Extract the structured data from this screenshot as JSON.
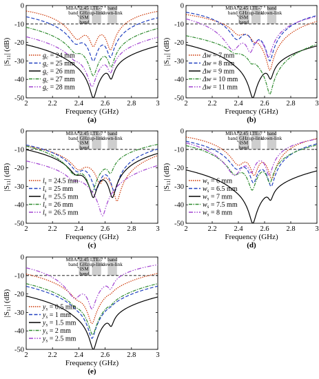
{
  "chart_data": [
    {
      "panel_label": "(a)",
      "type": "line",
      "xlabel": "Frequency (GHz)",
      "ylabel": "|S11| (dB)",
      "xlim": [
        2,
        3
      ],
      "ylim": [
        -50,
        0
      ],
      "xticks": [
        2,
        2.2,
        2.4,
        2.6,
        2.8,
        3
      ],
      "yticks": [
        0,
        -10,
        -20,
        -30,
        -40,
        -50
      ],
      "reference_line_db": -10,
      "band_labels": [
        "MBAN band",
        "2.45 GHz ISM band",
        "LTE-7 up-link",
        "band down-link"
      ],
      "legend_position": "left-bottom",
      "series": [
        {
          "name": "gc = 24 mm",
          "prefix": "g",
          "sub": "c",
          "suffix": " = 24 mm",
          "color": "#cc3300",
          "dash": "1.5,1.5",
          "dips": [
            [
              2.39,
              -18,
              0.042
            ],
            [
              2.51,
              -22,
              0.021
            ],
            [
              2.64,
              -24,
              0.019
            ]
          ]
        },
        {
          "name": "gc = 25 mm",
          "prefix": "g",
          "sub": "c",
          "suffix": " = 25 mm",
          "color": "#1f3fbf",
          "dash": "5,2.5",
          "dips": [
            [
              2.38,
              -20,
              0.042
            ],
            [
              2.51,
              -30,
              0.02
            ],
            [
              2.64,
              -28,
              0.019
            ]
          ]
        },
        {
          "name": "gc = 26 mm",
          "prefix": "g",
          "sub": "c",
          "suffix": " = 26 mm",
          "color": "#000000",
          "dash": "",
          "dips": [
            [
              2.38,
              -22,
              0.042
            ],
            [
              2.51,
              -50,
              0.018
            ],
            [
              2.645,
              -39,
              0.017
            ]
          ]
        },
        {
          "name": "gc = 27 mm",
          "prefix": "g",
          "sub": "c",
          "suffix": " = 27 mm",
          "color": "#2e8b2e",
          "dash": "5,1.5,1.5,1.5",
          "dips": [
            [
              2.375,
              -24,
              0.042
            ],
            [
              2.51,
              -38,
              0.02
            ],
            [
              2.645,
              -33,
              0.018
            ]
          ]
        },
        {
          "name": "gc = 28 mm",
          "prefix": "g",
          "sub": "c",
          "suffix": " = 28 mm",
          "color": "#a040d0",
          "dash": "6,2,1.5,2,1.5,2",
          "dips": [
            [
              2.37,
              -26,
              0.042
            ],
            [
              2.5,
              -44,
              0.02
            ],
            [
              2.64,
              -36,
              0.018
            ]
          ]
        }
      ]
    },
    {
      "panel_label": "(b)",
      "type": "line",
      "xlabel": "Frequency (GHz)",
      "ylabel": "|S11| (dB)",
      "xlim": [
        2,
        3
      ],
      "ylim": [
        -50,
        0
      ],
      "xticks": [
        2,
        2.2,
        2.4,
        2.6,
        2.8,
        3
      ],
      "yticks": [
        0,
        -10,
        -20,
        -30,
        -40,
        -50
      ],
      "reference_line_db": -10,
      "band_labels": [
        "MBAN band",
        "2.45 GHz ISM band",
        "LTE-7 up-link",
        "band down-link"
      ],
      "legend_position": "left-bottom",
      "series": [
        {
          "name": "Δw = 7 mm",
          "prefix": "Δw",
          "sub": "",
          "suffix": " = 7 mm",
          "color": "#cc3300",
          "dash": "1.5,1.5",
          "dips": [
            [
              2.4,
              -14,
              0.04
            ],
            [
              2.52,
              -16,
              0.022
            ],
            [
              2.64,
              -35,
              0.016
            ]
          ]
        },
        {
          "name": "Δw = 8 mm",
          "prefix": "Δw",
          "sub": "",
          "suffix": " = 8 mm",
          "color": "#1f3fbf",
          "dash": "5,2.5",
          "dips": [
            [
              2.39,
              -18,
              0.04
            ],
            [
              2.52,
              -20,
              0.022
            ],
            [
              2.64,
              -30,
              0.017
            ]
          ]
        },
        {
          "name": "Δw = 9 mm",
          "prefix": "Δw",
          "sub": "",
          "suffix": " = 9 mm",
          "color": "#000000",
          "dash": "",
          "dips": [
            [
              2.38,
              -22,
              0.042
            ],
            [
              2.51,
              -50,
              0.018
            ],
            [
              2.645,
              -39,
              0.017
            ]
          ]
        },
        {
          "name": "Δw = 10 mm",
          "prefix": "Δw",
          "sub": "",
          "suffix": " = 10 mm",
          "color": "#2e8b2e",
          "dash": "5,1.5,1.5,1.5",
          "dips": [
            [
              2.37,
              -22,
              0.042
            ],
            [
              2.5,
              -28,
              0.02
            ],
            [
              2.64,
              -48,
              0.016
            ]
          ]
        },
        {
          "name": "Δw = 11 mm",
          "prefix": "Δw",
          "sub": "",
          "suffix": " = 11 mm",
          "color": "#a040d0",
          "dash": "6,2,1.5,2,1.5,2",
          "dips": [
            [
              2.36,
              -24,
              0.042
            ],
            [
              2.49,
              -25,
              0.022
            ],
            [
              2.63,
              -28,
              0.018
            ]
          ]
        }
      ]
    },
    {
      "panel_label": "(c)",
      "type": "line",
      "xlabel": "Frequency (GHz)",
      "ylabel": "|S11| (dB)",
      "xlim": [
        2,
        3
      ],
      "ylim": [
        -50,
        0
      ],
      "xticks": [
        2,
        2.2,
        2.4,
        2.6,
        2.8,
        3
      ],
      "yticks": [
        0,
        -10,
        -20,
        -30,
        -40,
        -50
      ],
      "reference_line_db": -10,
      "band_labels": [
        "MBAN band",
        "2.45 GHz ISM band",
        "LTE-7 up-link",
        "band down-link"
      ],
      "legend_position": "left-bottom",
      "series": [
        {
          "name": "ls = 24.5 mm",
          "prefix": "l",
          "sub": "s",
          "suffix": " = 24.5 mm",
          "color": "#cc3300",
          "dash": "1.5,1.5",
          "dips": [
            [
              2.4,
              -20,
              0.042
            ],
            [
              2.56,
              -28,
              0.02
            ],
            [
              2.69,
              -38,
              0.017
            ]
          ]
        },
        {
          "name": "ls = 25 mm",
          "prefix": "l",
          "sub": "s",
          "suffix": " = 25 mm",
          "color": "#1f3fbf",
          "dash": "5,2.5",
          "dips": [
            [
              2.39,
              -21,
              0.042
            ],
            [
              2.53,
              -32,
              0.02
            ],
            [
              2.67,
              -33,
              0.017
            ]
          ]
        },
        {
          "name": "ls = 25.5 mm",
          "prefix": "l",
          "sub": "s",
          "suffix": " = 25.5 mm",
          "color": "#000000",
          "dash": "",
          "dips": [
            [
              2.38,
              -22,
              0.042
            ],
            [
              2.51,
              -36,
              0.018
            ],
            [
              2.655,
              -36,
              0.017
            ]
          ]
        },
        {
          "name": "ls = 26 mm",
          "prefix": "l",
          "sub": "s",
          "suffix": " = 26 mm",
          "color": "#2e8b2e",
          "dash": "5,1.5,1.5,1.5",
          "dips": [
            [
              2.37,
              -23,
              0.042
            ],
            [
              2.5,
              -33,
              0.02
            ],
            [
              2.64,
              -22,
              0.02
            ]
          ]
        },
        {
          "name": "ls = 26.5 mm",
          "prefix": "l",
          "sub": "s",
          "suffix": " = 26.5 mm",
          "color": "#a040d0",
          "dash": "6,2,1.5,2,1.5,2",
          "dips": [
            [
              2.36,
              -24,
              0.042
            ],
            [
              2.58,
              -46,
              0.018
            ],
            [
              2.63,
              -18,
              0.02
            ]
          ]
        }
      ]
    },
    {
      "panel_label": "(d)",
      "type": "line",
      "xlabel": "Frequency (GHz)",
      "ylabel": "|S11| (dB)",
      "xlim": [
        2,
        3
      ],
      "ylim": [
        -50,
        0
      ],
      "xticks": [
        2,
        2.2,
        2.4,
        2.6,
        2.8,
        3
      ],
      "yticks": [
        0,
        -10,
        -20,
        -30,
        -40,
        -50
      ],
      "reference_line_db": -10,
      "band_labels": [
        "MBAN band",
        "2.45 GHz ISM band",
        "LTE-7 up-link",
        "band down-link"
      ],
      "legend_position": "left-bottom",
      "series": [
        {
          "name": "ws = 6 mm",
          "prefix": "w",
          "sub": "s",
          "suffix": " = 6 mm",
          "color": "#cc3300",
          "dash": "1.5,1.5",
          "dips": [
            [
              2.4,
              -18,
              0.042
            ],
            [
              2.52,
              -24,
              0.02
            ],
            [
              2.655,
              -26,
              0.018
            ]
          ]
        },
        {
          "name": "ws = 6.5 mm",
          "prefix": "w",
          "sub": "s",
          "suffix": " = 6.5 mm",
          "color": "#1f3fbf",
          "dash": "5,2.5",
          "dips": [
            [
              2.39,
              -20,
              0.042
            ],
            [
              2.515,
              -28,
              0.02
            ],
            [
              2.65,
              -30,
              0.018
            ]
          ]
        },
        {
          "name": "ws = 7 mm",
          "prefix": "w",
          "sub": "s",
          "suffix": " = 7 mm",
          "color": "#000000",
          "dash": "",
          "dips": [
            [
              2.38,
              -22,
              0.042
            ],
            [
              2.51,
              -50,
              0.018
            ],
            [
              2.645,
              -36,
              0.017
            ]
          ]
        },
        {
          "name": "ws = 7.5 mm",
          "prefix": "w",
          "sub": "s",
          "suffix": " = 7.5 mm",
          "color": "#2e8b2e",
          "dash": "5,1.5,1.5,1.5",
          "dips": [
            [
              2.375,
              -23,
              0.042
            ],
            [
              2.505,
              -32,
              0.02
            ],
            [
              2.64,
              -28,
              0.018
            ]
          ]
        },
        {
          "name": "ws = 8 mm",
          "prefix": "w",
          "sub": "s",
          "suffix": " = 8 mm",
          "color": "#a040d0",
          "dash": "6,2,1.5,2,1.5,2",
          "dips": [
            [
              2.37,
              -24,
              0.042
            ],
            [
              2.5,
              -22,
              0.02
            ],
            [
              2.635,
              -24,
              0.018
            ]
          ]
        }
      ]
    },
    {
      "panel_label": "(e)",
      "type": "line",
      "xlabel": "Frequency (GHz)",
      "ylabel": "|S11| (dB)",
      "xlim": [
        2,
        3
      ],
      "ylim": [
        -50,
        0
      ],
      "xticks": [
        2,
        2.2,
        2.4,
        2.6,
        2.8,
        3
      ],
      "yticks": [
        0,
        -10,
        -20,
        -30,
        -40,
        -50
      ],
      "reference_line_db": -10,
      "band_labels": [
        "MBAN band",
        "2.45 GHz ISM band",
        "LTE-7 up-link",
        "band down-link"
      ],
      "legend_position": "left-bottom",
      "series": [
        {
          "name": "ys = 0.5 mm",
          "prefix": "y",
          "sub": "s",
          "suffix": " = 0.5 mm",
          "color": "#cc3300",
          "dash": "1.5,1.5",
          "dips": [
            [
              2.39,
              -20,
              0.042
            ],
            [
              2.5,
              -36,
              0.02
            ],
            [
              2.64,
              -13,
              0.022
            ]
          ]
        },
        {
          "name": "ys = 1 mm",
          "prefix": "y",
          "sub": "s",
          "suffix": " = 1 mm",
          "color": "#1f3fbf",
          "dash": "5,2.5",
          "dips": [
            [
              2.39,
              -21,
              0.042
            ],
            [
              2.5,
              -44,
              0.019
            ],
            [
              2.64,
              -18,
              0.02
            ]
          ]
        },
        {
          "name": "ys = 1.5 mm",
          "prefix": "y",
          "sub": "s",
          "suffix": " = 1.5 mm",
          "color": "#000000",
          "dash": "",
          "dips": [
            [
              2.38,
              -22,
              0.042
            ],
            [
              2.51,
              -50,
              0.018
            ],
            [
              2.645,
              -36,
              0.017
            ]
          ]
        },
        {
          "name": "ys = 2 mm",
          "prefix": "y",
          "sub": "s",
          "suffix": " = 2 mm",
          "color": "#2e8b2e",
          "dash": "5,1.5,1.5,1.5",
          "dips": [
            [
              2.375,
              -22,
              0.042
            ],
            [
              2.505,
              -42,
              0.02
            ],
            [
              2.64,
              -20,
              0.02
            ]
          ]
        },
        {
          "name": "ys = 2.5 mm",
          "prefix": "y",
          "sub": "s",
          "suffix": " = 2.5 mm",
          "color": "#a040d0",
          "dash": "6,2,1.5,2,1.5,2",
          "dips": [
            [
              2.37,
              -22,
              0.042
            ],
            [
              2.5,
              -28,
              0.02
            ],
            [
              2.64,
              -16,
              0.02
            ]
          ]
        }
      ]
    }
  ]
}
